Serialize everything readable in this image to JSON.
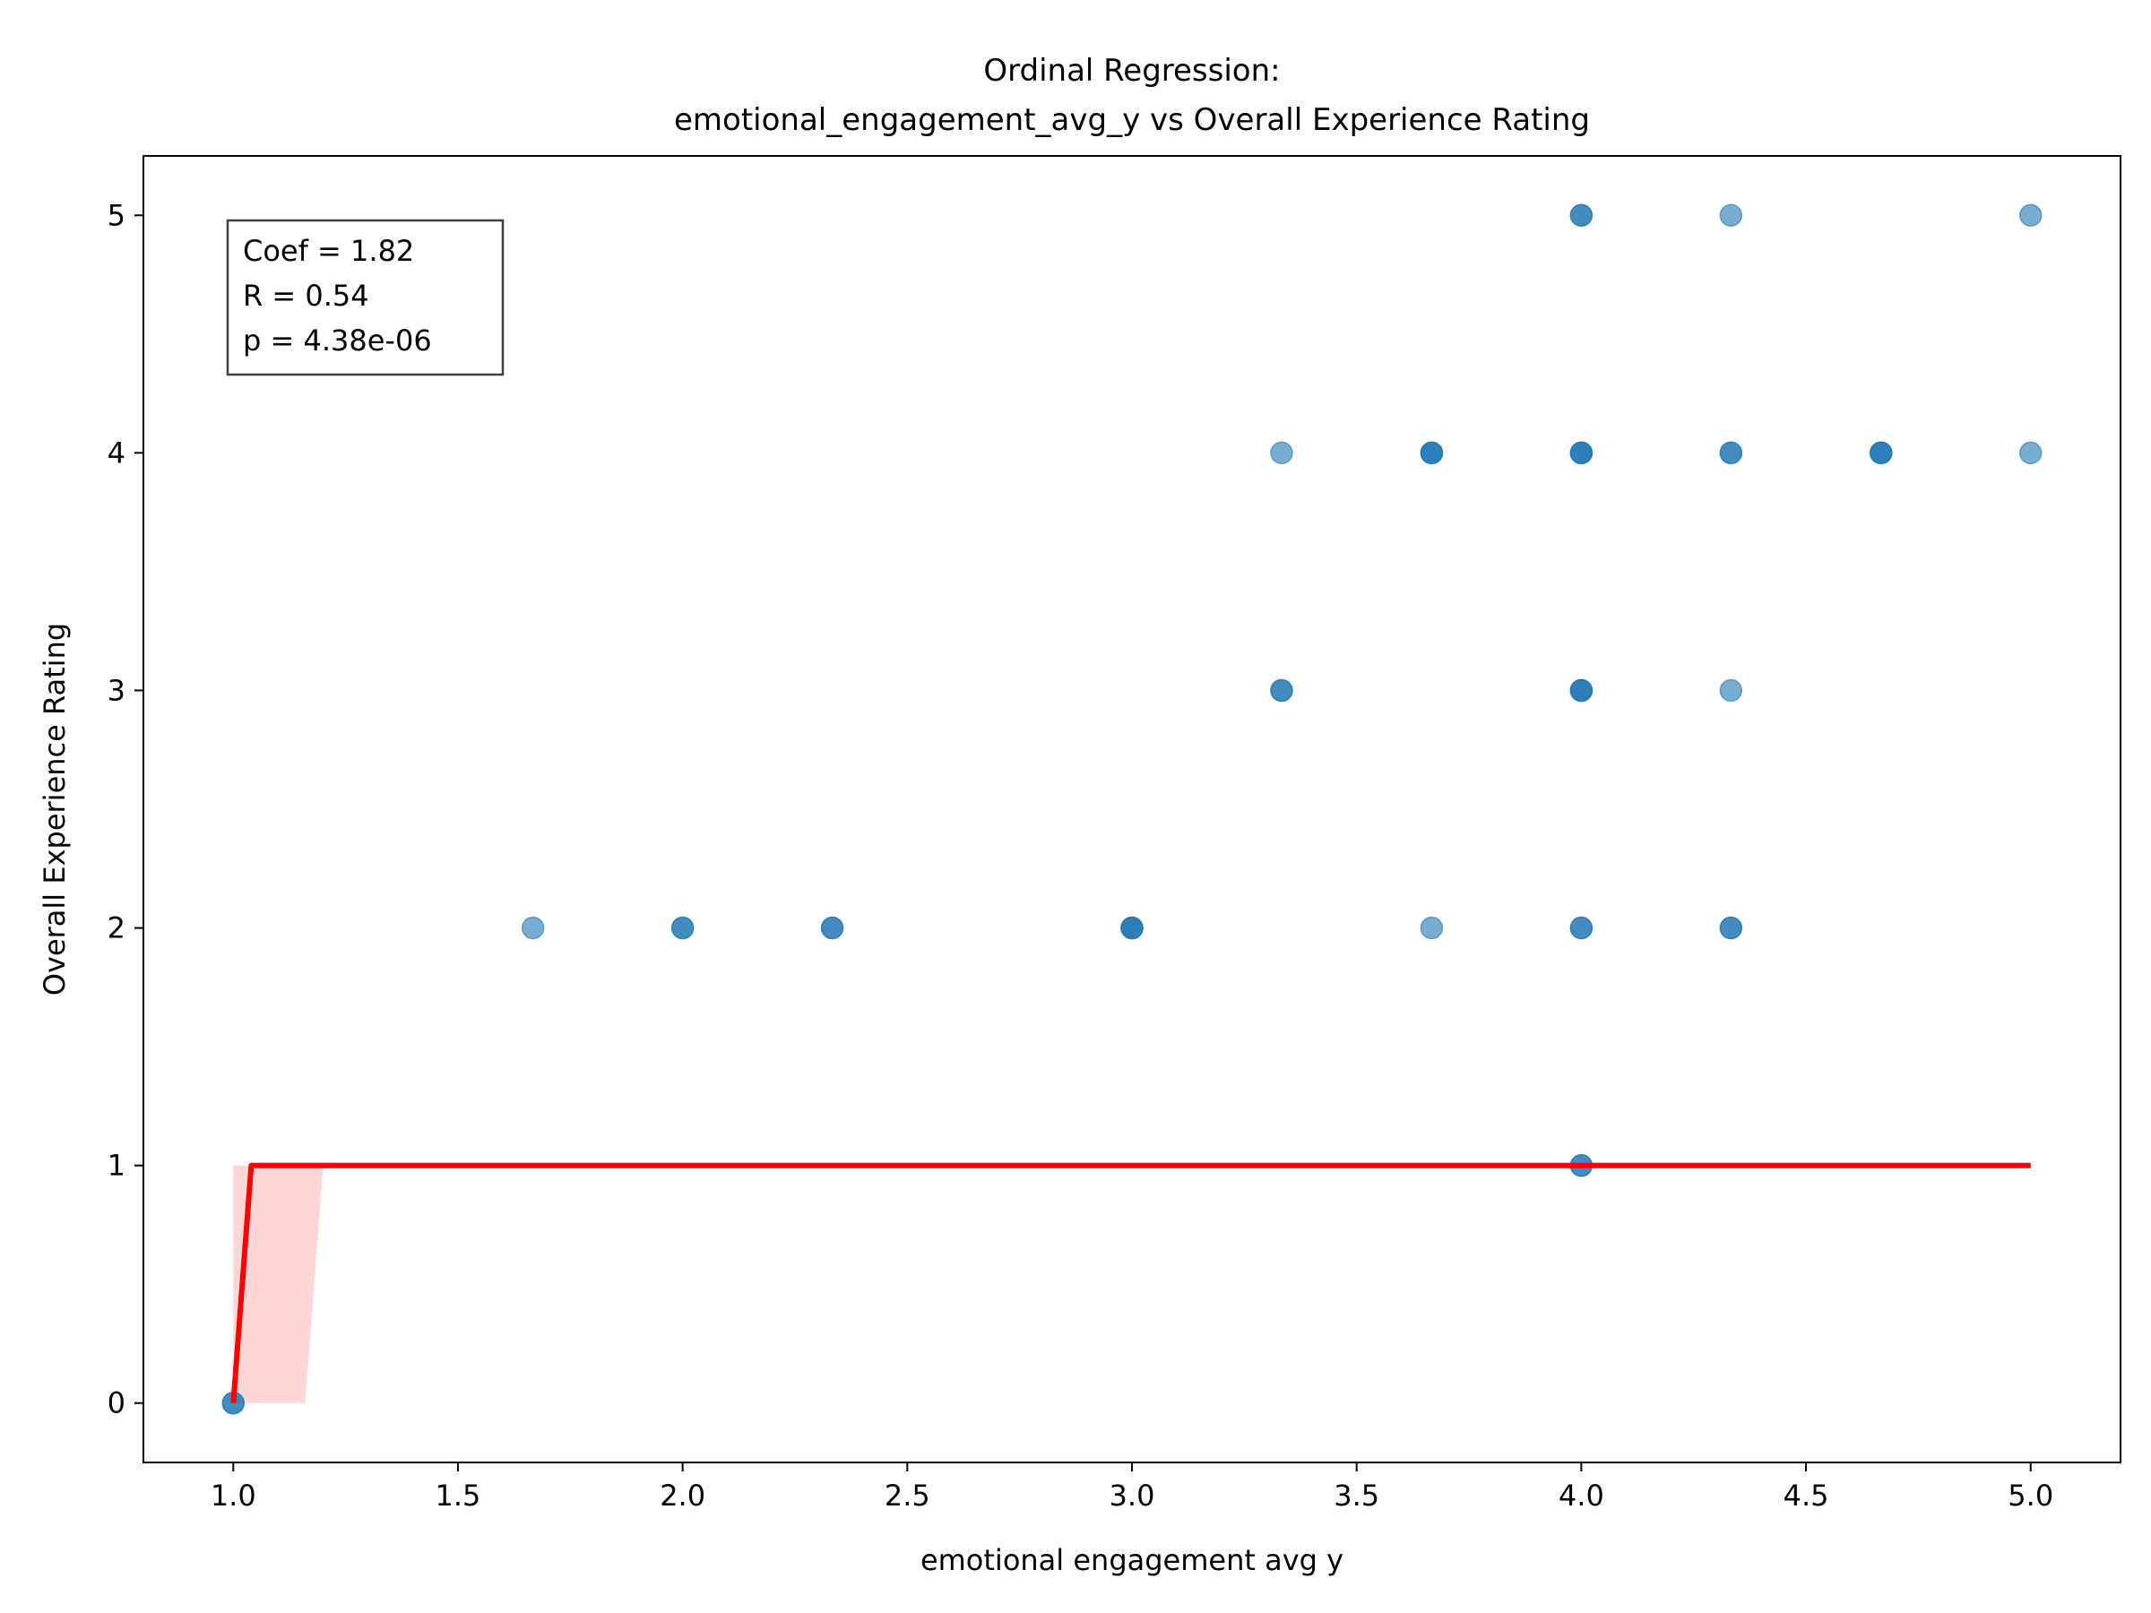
{
  "chart_data": {
    "type": "scatter",
    "title": "Ordinal Regression:\nemotional_engagement_avg_y vs Overall Experience Rating",
    "title_lines": [
      "Ordinal Regression:",
      "emotional_engagement_avg_y vs Overall Experience Rating"
    ],
    "xlabel": "emotional engagement avg y",
    "ylabel": "Overall Experience Rating",
    "xlim": [
      0.8,
      5.2
    ],
    "ylim": [
      -0.25,
      5.25
    ],
    "x_ticks": [
      1.0,
      1.5,
      2.0,
      2.5,
      3.0,
      3.5,
      4.0,
      4.5,
      5.0
    ],
    "x_tick_labels": [
      "1.0",
      "1.5",
      "2.0",
      "2.5",
      "3.0",
      "3.5",
      "4.0",
      "4.5",
      "5.0"
    ],
    "y_ticks": [
      0,
      1,
      2,
      3,
      4,
      5
    ],
    "y_tick_labels": [
      "0",
      "1",
      "2",
      "3",
      "4",
      "5"
    ],
    "grid": false,
    "stats_box": {
      "position": "top-left",
      "lines": [
        "Coef = 1.82",
        "R = 0.54",
        "p = 4.38e-06"
      ]
    },
    "points": [
      {
        "x": 1.0,
        "y": 0,
        "count": 2
      },
      {
        "x": 1.667,
        "y": 2,
        "count": 1
      },
      {
        "x": 2.0,
        "y": 2,
        "count": 2
      },
      {
        "x": 2.333,
        "y": 2,
        "count": 2
      },
      {
        "x": 3.0,
        "y": 2,
        "count": 3
      },
      {
        "x": 3.333,
        "y": 4,
        "count": 1
      },
      {
        "x": 3.333,
        "y": 3,
        "count": 2
      },
      {
        "x": 3.667,
        "y": 4,
        "count": 3
      },
      {
        "x": 3.667,
        "y": 2,
        "count": 1
      },
      {
        "x": 4.0,
        "y": 5,
        "count": 2
      },
      {
        "x": 4.0,
        "y": 4,
        "count": 3
      },
      {
        "x": 4.0,
        "y": 3,
        "count": 3
      },
      {
        "x": 4.0,
        "y": 2,
        "count": 2
      },
      {
        "x": 4.0,
        "y": 1,
        "count": 2
      },
      {
        "x": 4.333,
        "y": 5,
        "count": 1
      },
      {
        "x": 4.333,
        "y": 4,
        "count": 2
      },
      {
        "x": 4.333,
        "y": 3,
        "count": 1
      },
      {
        "x": 4.333,
        "y": 2,
        "count": 2
      },
      {
        "x": 4.667,
        "y": 4,
        "count": 3
      },
      {
        "x": 5.0,
        "y": 5,
        "count": 1
      },
      {
        "x": 5.0,
        "y": 4,
        "count": 1
      }
    ],
    "fit_line": {
      "points": [
        [
          1.0,
          0
        ],
        [
          1.04,
          1
        ],
        [
          5.0,
          1
        ]
      ]
    },
    "confidence_band": {
      "polygon": [
        [
          1.0,
          0
        ],
        [
          1.16,
          0
        ],
        [
          1.2,
          1
        ],
        [
          1.0,
          1
        ]
      ]
    },
    "colors": {
      "points": "#1f77b4",
      "fit_line": "#ff0000",
      "band": "#ffd6d6"
    }
  }
}
